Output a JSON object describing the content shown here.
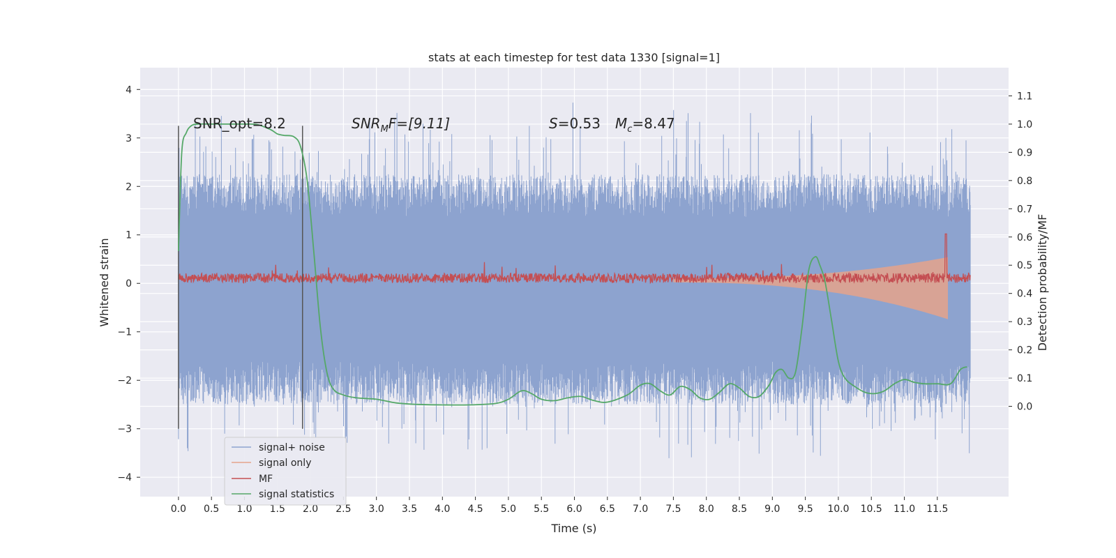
{
  "chart_data": {
    "type": "line",
    "title": "stats at each timestep for test data 1330 [signal=1]",
    "xlabel": "Time (s)",
    "ylabel": "Whitened strain",
    "ylabel_right": "Detection probability/MF",
    "xlim": [
      -0.58,
      12.58
    ],
    "ylim": [
      -4.4,
      4.45
    ],
    "ylim_right": [
      -0.32,
      1.2
    ],
    "x_ticks": [
      0.0,
      0.5,
      1.0,
      1.5,
      2.0,
      2.5,
      3.0,
      3.5,
      4.0,
      4.5,
      5.0,
      5.5,
      6.0,
      6.5,
      7.0,
      7.5,
      8.0,
      8.5,
      9.0,
      9.5,
      10.0,
      10.5,
      11.0,
      11.5
    ],
    "x_tick_labels": [
      "0.0",
      "0.5",
      "1.0",
      "1.5",
      "2.0",
      "2.5",
      "3.0",
      "3.5",
      "4.0",
      "4.5",
      "5.0",
      "5.5",
      "6.0",
      "6.5",
      "7.0",
      "7.5",
      "8.0",
      "8.5",
      "9.0",
      "9.5",
      "10.0",
      "10.5",
      "11.0",
      "11.5"
    ],
    "y_ticks": [
      4,
      3,
      2,
      1,
      0,
      -1,
      -2,
      -3,
      -4
    ],
    "y_tick_labels": [
      "4",
      "3",
      "2",
      "1",
      "0",
      "−1",
      "−2",
      "−3",
      "−4"
    ],
    "y_right_ticks": [
      1.1,
      1.0,
      0.9,
      0.8,
      0.7,
      0.6,
      0.5,
      0.4,
      0.3,
      0.2,
      0.1,
      0.0
    ],
    "y_right_tick_labels": [
      "1.1",
      "1.0",
      "0.9",
      "0.8",
      "0.7",
      "0.6",
      "0.5",
      "0.4",
      "0.3",
      "0.2",
      "0.1",
      "0.0"
    ],
    "grid": true,
    "legend_position": "lower-left",
    "annotations": {
      "snr_opt": "SNR_opt=8.2",
      "snr_mf_main": "SNR",
      "snr_mf_sub": "M",
      "snr_mf_rest": "F=[9.11]",
      "s_main": "S",
      "s_rest": "=0.53",
      "mc_main": "M",
      "mc_sub": "c",
      "mc_rest": "=8.47"
    },
    "vertical_lines_x": [
      0.0,
      1.88
    ],
    "series": [
      {
        "name": "signal+ noise",
        "color": "#8da3cf",
        "axis": "left",
        "x_range": [
          0.0,
          12.0
        ],
        "samples": 2400,
        "envelope": {
          "typical_max": 1.35,
          "typical_min": -1.6,
          "peak_max": 4.08,
          "peak_min": -3.85
        }
      },
      {
        "name": "signal only",
        "color": "#e5a38b",
        "axis": "left",
        "chirp_x": [
          7.5,
          11.66
        ],
        "chirp_peak_amplitude": 0.8,
        "note_x_end": 11.66
      },
      {
        "name": "MF",
        "color": "#c44e52",
        "axis": "left",
        "baseline": 0.08,
        "noise_band": [
          0.0,
          0.25
        ],
        "spike": {
          "x": 11.63,
          "y": 1.02
        }
      },
      {
        "name": "signal statistics",
        "color": "#55a868",
        "axis": "right",
        "x": [
          0.0,
          0.05,
          0.12,
          0.2,
          0.3,
          0.5,
          0.8,
          1.0,
          1.2,
          1.4,
          1.5,
          1.6,
          1.75,
          1.85,
          1.95,
          2.05,
          2.15,
          2.25,
          2.35,
          2.5,
          2.7,
          3.0,
          3.3,
          3.6,
          4.0,
          4.4,
          4.8,
          5.0,
          5.2,
          5.35,
          5.5,
          5.7,
          5.9,
          6.1,
          6.3,
          6.5,
          6.8,
          7.0,
          7.15,
          7.3,
          7.45,
          7.6,
          7.75,
          7.9,
          8.05,
          8.2,
          8.35,
          8.5,
          8.65,
          8.8,
          8.95,
          9.05,
          9.15,
          9.25,
          9.35,
          9.45,
          9.55,
          9.65,
          9.72,
          9.8,
          9.9,
          10.0,
          10.1,
          10.25,
          10.4,
          10.55,
          10.7,
          10.85,
          11.0,
          11.15,
          11.3,
          11.5,
          11.7,
          11.85,
          11.95
        ],
        "y": [
          0.55,
          0.9,
          0.97,
          0.995,
          1.0,
          1.0,
          1.0,
          1.0,
          0.998,
          0.98,
          0.965,
          0.96,
          0.955,
          0.92,
          0.8,
          0.55,
          0.28,
          0.12,
          0.06,
          0.04,
          0.03,
          0.025,
          0.012,
          0.007,
          0.005,
          0.005,
          0.01,
          0.025,
          0.055,
          0.045,
          0.025,
          0.02,
          0.03,
          0.035,
          0.02,
          0.015,
          0.04,
          0.075,
          0.08,
          0.055,
          0.04,
          0.07,
          0.06,
          0.03,
          0.025,
          0.05,
          0.08,
          0.065,
          0.035,
          0.035,
          0.075,
          0.12,
          0.13,
          0.1,
          0.12,
          0.28,
          0.48,
          0.53,
          0.5,
          0.44,
          0.3,
          0.16,
          0.1,
          0.07,
          0.05,
          0.045,
          0.055,
          0.08,
          0.095,
          0.085,
          0.08,
          0.08,
          0.08,
          0.13,
          0.14
        ]
      }
    ]
  }
}
